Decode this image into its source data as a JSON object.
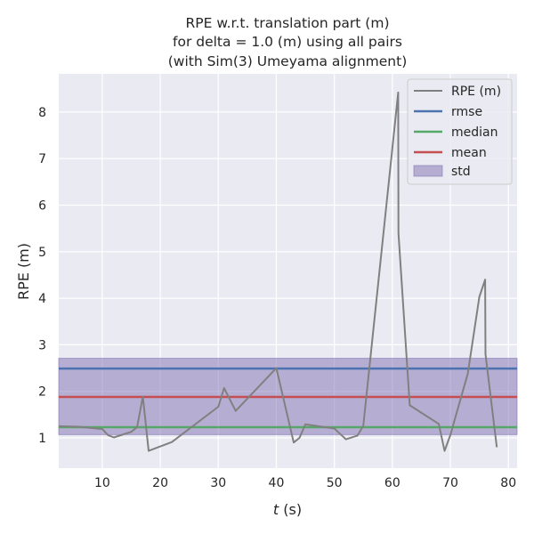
{
  "chart_data": {
    "type": "line",
    "title_lines": [
      "RPE w.r.t. translation part (m)",
      "for delta = 1.0 (m) using all pairs",
      "(with Sim(3) Umeyama alignment)"
    ],
    "xlabel_var": "t",
    "xlabel_unit": " (s)",
    "ylabel": "RPE (m)",
    "xlim": [
      2.5,
      81.5
    ],
    "ylim": [
      0.35,
      8.82
    ],
    "xticks": [
      10,
      20,
      30,
      40,
      50,
      60,
      70,
      80
    ],
    "yticks": [
      1,
      2,
      3,
      4,
      5,
      6,
      7,
      8
    ],
    "grid": true,
    "legend_position": "top-right",
    "series": [
      {
        "name": "RPE (m)",
        "color": "#808080",
        "x": [
          2.5,
          6,
          10,
          11,
          12,
          15,
          16,
          17,
          18,
          22,
          30,
          31,
          33,
          40,
          43,
          44,
          45,
          50,
          52,
          54,
          55,
          61,
          61.05,
          63,
          68,
          69,
          70,
          73,
          75,
          76,
          76.05,
          78
        ],
        "y": [
          1.25,
          1.24,
          1.19,
          1.06,
          1.01,
          1.13,
          1.23,
          1.89,
          0.72,
          0.91,
          1.67,
          2.07,
          1.58,
          2.5,
          0.9,
          1.0,
          1.29,
          1.2,
          0.97,
          1.05,
          1.26,
          8.42,
          5.4,
          1.7,
          1.3,
          0.72,
          1.06,
          2.38,
          4.03,
          4.4,
          2.8,
          0.8
        ]
      }
    ],
    "stats": {
      "rmse": {
        "name": "rmse",
        "value": 2.49,
        "color": "#4c72b0"
      },
      "median": {
        "name": "median",
        "value": 1.23,
        "color": "#55a868"
      },
      "mean": {
        "name": "mean",
        "value": 1.88,
        "color": "#c44e52"
      },
      "std": {
        "name": "std",
        "low": 1.07,
        "high": 2.71,
        "color": "#8172b2"
      }
    }
  }
}
